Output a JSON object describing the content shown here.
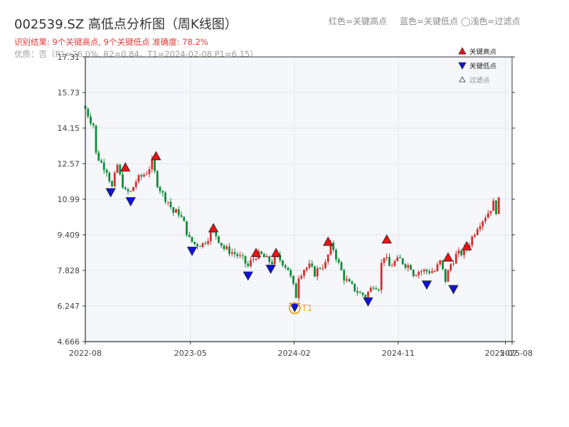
{
  "header": {
    "title": "002539.SZ 高低点分析图（周K线图）",
    "result_line": "识别结果: 9个关键高点, 9个关键低点  准确度: 78.2%",
    "quality_line": "优质：否（P1=26.0%, R2=0.84，T1=2024-02-08 P1=6.15）",
    "legend_high_text": "红色=关键高点",
    "legend_low_text": "蓝色=关键低点",
    "legend_filtered_text": "◯浅色=过滤点"
  },
  "legend": {
    "items": [
      {
        "label": "关键高点",
        "marker": "triangle-up",
        "color": "#ee1111"
      },
      {
        "label": "关键低点",
        "marker": "triangle-down",
        "color": "#1111dd"
      },
      {
        "label": "过滤点",
        "marker": "triangle-up-outline",
        "color": "#999999"
      }
    ]
  },
  "colors": {
    "up_candle": "#d32f2f",
    "down_candle": "#128a3a",
    "high_marker": "#ee1111",
    "low_marker": "#1111dd",
    "t1_circle": "#f5a623",
    "plot_bg": "#f5f7fa",
    "grid": "#e1e5ea",
    "axis": "#333333",
    "tick_text": "#444444"
  },
  "chart_data": {
    "type": "candlestick",
    "title": "002539.SZ 高低点分析图（周K线图）",
    "x_ticks": [
      "2022-08",
      "2023-05",
      "2024-02",
      "2024-11",
      "2025-07",
      "2025-08"
    ],
    "y_ticks": [
      "4.666",
      "6.247",
      "7.828",
      "9.409",
      "10.99",
      "12.57",
      "14.15",
      "15.73",
      "17.31"
    ],
    "ylim": [
      4.666,
      17.31
    ],
    "xlim_week_index": [
      0,
      160
    ],
    "x_tick_week_index": [
      0,
      39.4,
      78.3,
      117.3,
      157.5,
      160
    ],
    "grid": true,
    "legend_position": "top-right",
    "close_path": [
      [
        0,
        15.0
      ],
      [
        2,
        14.5
      ],
      [
        3,
        14.3
      ],
      [
        4,
        13.0
      ],
      [
        6,
        12.6
      ],
      [
        8,
        12.3
      ],
      [
        10,
        11.5
      ],
      [
        12,
        12.5
      ],
      [
        13,
        12.0
      ],
      [
        15,
        11.3
      ],
      [
        17,
        11.3
      ],
      [
        19,
        11.8
      ],
      [
        21,
        12.0
      ],
      [
        23,
        12.2
      ],
      [
        25,
        12.6
      ],
      [
        27,
        11.7
      ],
      [
        29,
        11.2
      ],
      [
        31,
        10.9
      ],
      [
        33,
        10.4
      ],
      [
        35,
        10.4
      ],
      [
        37,
        9.9
      ],
      [
        39,
        9.2
      ],
      [
        41,
        9.0
      ],
      [
        44,
        9.0
      ],
      [
        46,
        9.3
      ],
      [
        48,
        9.6
      ],
      [
        50,
        9.2
      ],
      [
        52,
        8.8
      ],
      [
        54,
        8.7
      ],
      [
        57,
        8.5
      ],
      [
        59,
        8.3
      ],
      [
        61,
        8.0
      ],
      [
        62,
        8.2
      ],
      [
        64,
        8.5
      ],
      [
        66,
        8.5
      ],
      [
        68,
        8.3
      ],
      [
        70,
        8.2
      ],
      [
        72,
        8.4
      ],
      [
        74,
        8.2
      ],
      [
        76,
        7.9
      ],
      [
        77,
        7.5
      ],
      [
        78,
        7.1
      ],
      [
        79,
        6.7
      ],
      [
        80,
        7.6
      ],
      [
        82,
        7.9
      ],
      [
        84,
        8.0
      ],
      [
        86,
        7.7
      ],
      [
        88,
        8.0
      ],
      [
        90,
        8.1
      ],
      [
        92,
        8.9
      ],
      [
        93,
        8.8
      ],
      [
        95,
        8.1
      ],
      [
        97,
        7.5
      ],
      [
        99,
        7.2
      ],
      [
        101,
        7.0
      ],
      [
        103,
        6.8
      ],
      [
        105,
        6.7
      ],
      [
        107,
        7.0
      ],
      [
        108,
        7.2
      ],
      [
        110,
        7.1
      ],
      [
        111,
        8.1
      ],
      [
        112,
        8.5
      ],
      [
        114,
        8.0
      ],
      [
        116,
        8.2
      ],
      [
        118,
        8.3
      ],
      [
        120,
        8.1
      ],
      [
        122,
        8.0
      ],
      [
        123,
        7.7
      ],
      [
        125,
        7.8
      ],
      [
        127,
        7.8
      ],
      [
        129,
        7.8
      ],
      [
        131,
        7.8
      ],
      [
        133,
        8.2
      ],
      [
        134,
        7.8
      ],
      [
        135,
        7.4
      ],
      [
        137,
        8.1
      ],
      [
        139,
        8.5
      ],
      [
        141,
        8.6
      ],
      [
        143,
        8.8
      ],
      [
        145,
        9.3
      ],
      [
        147,
        9.8
      ],
      [
        149,
        10.1
      ],
      [
        151,
        10.4
      ],
      [
        153,
        10.8
      ],
      [
        154,
        10.5
      ],
      [
        155,
        10.9
      ]
    ],
    "key_highs": [
      {
        "week": 15,
        "price": 12.4
      },
      {
        "week": 26.5,
        "price": 12.9
      },
      {
        "week": 48,
        "price": 9.7
      },
      {
        "week": 64,
        "price": 8.6
      },
      {
        "week": 71.5,
        "price": 8.6
      },
      {
        "week": 91,
        "price": 9.1
      },
      {
        "week": 113,
        "price": 9.2
      },
      {
        "week": 136,
        "price": 8.4
      },
      {
        "week": 143,
        "price": 8.9
      }
    ],
    "key_lows": [
      {
        "week": 9.5,
        "price": 11.3
      },
      {
        "week": 17,
        "price": 10.9
      },
      {
        "week": 40,
        "price": 8.7
      },
      {
        "week": 61,
        "price": 7.6
      },
      {
        "week": 69.5,
        "price": 7.9
      },
      {
        "week": 78.5,
        "price": 6.2
      },
      {
        "week": 106,
        "price": 6.45
      },
      {
        "week": 128,
        "price": 7.2
      },
      {
        "week": 138,
        "price": 7.0
      }
    ],
    "annotations": [
      {
        "label": "T1",
        "week": 78.5,
        "price": 6.15
      }
    ]
  }
}
